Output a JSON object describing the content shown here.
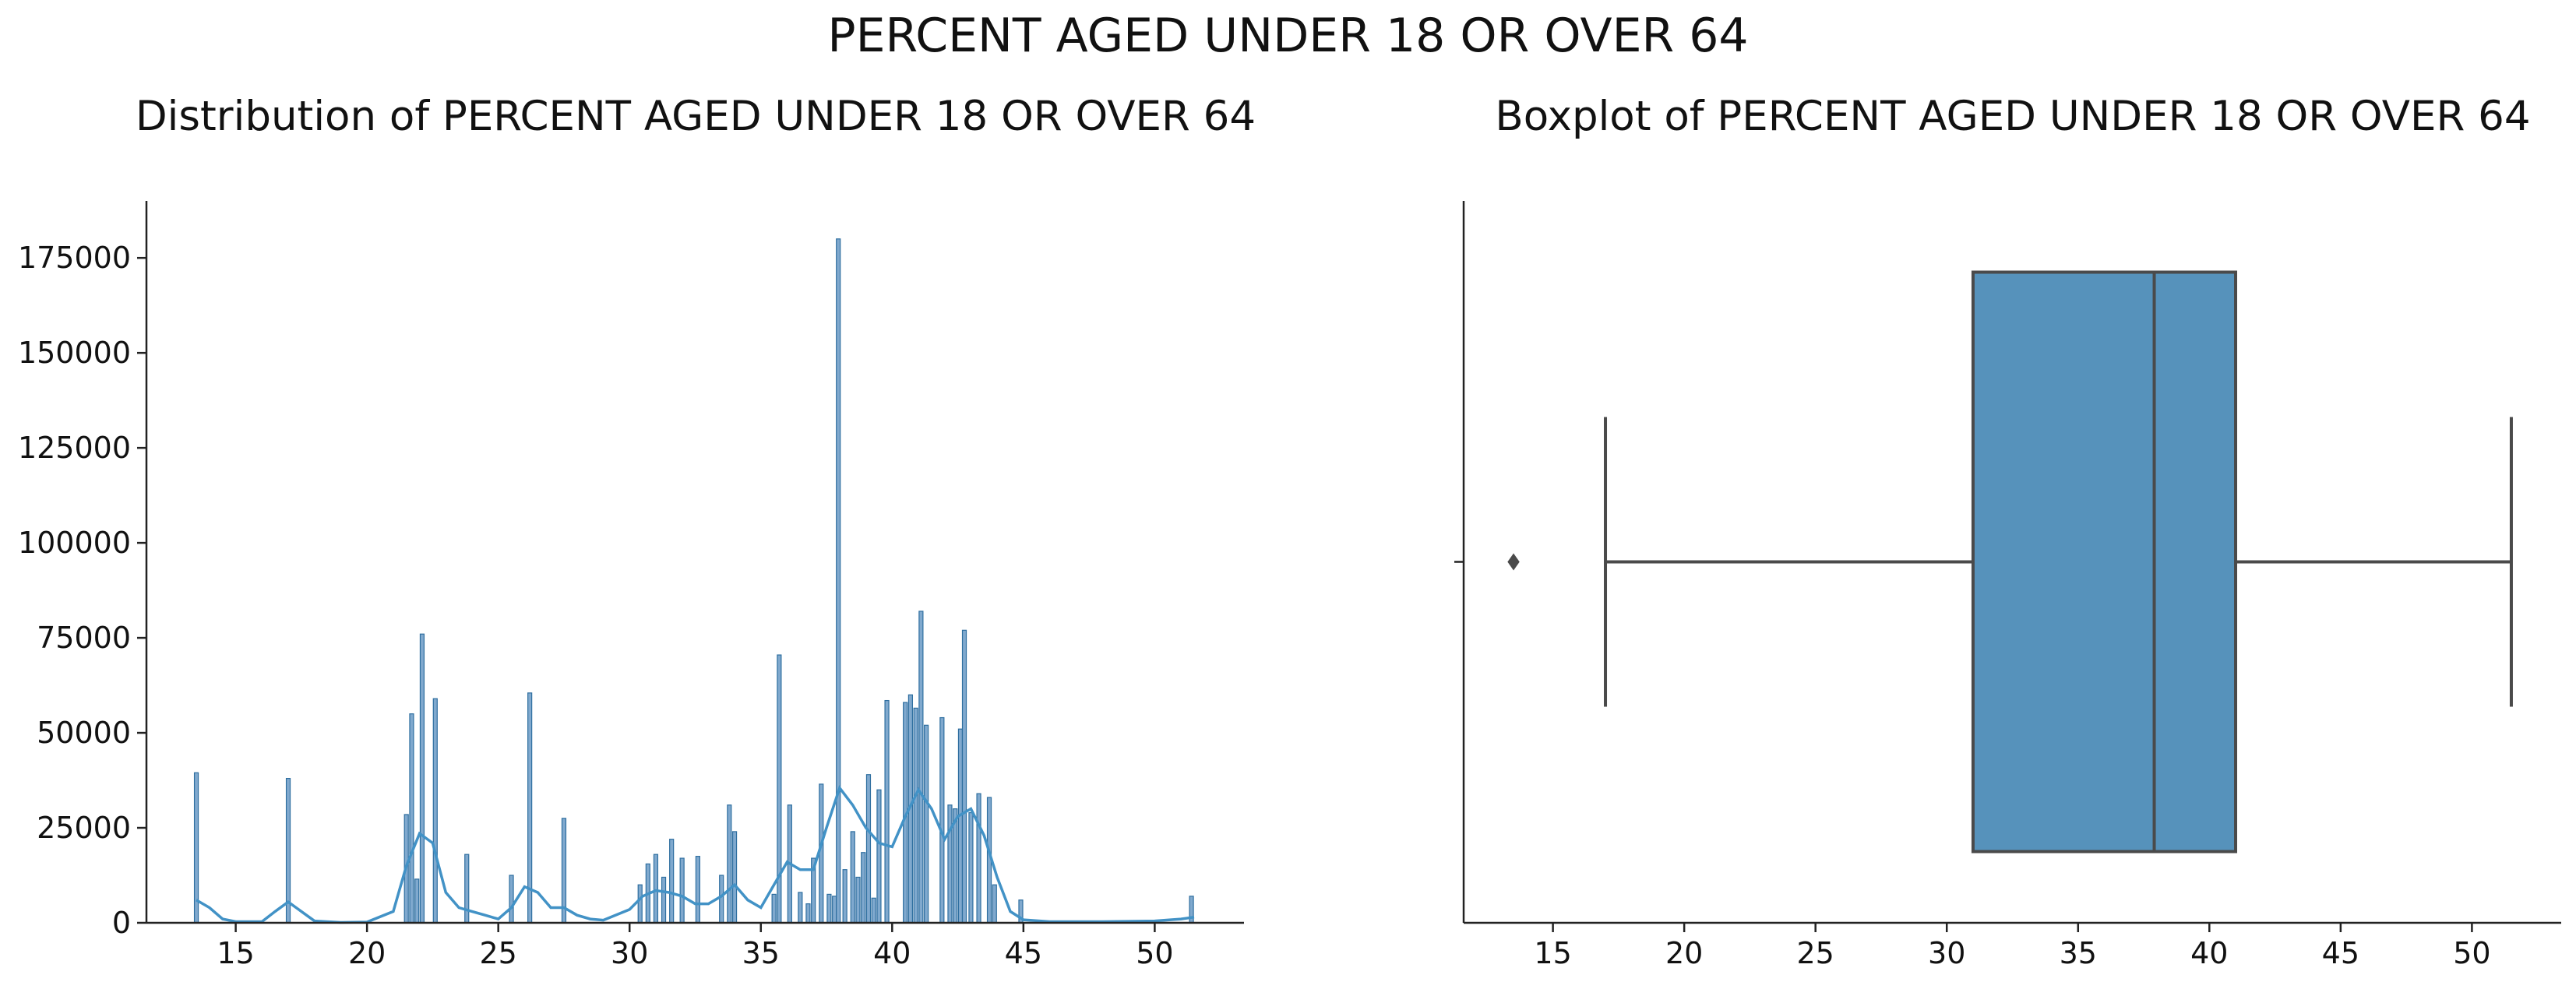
{
  "figure_title": "PERCENT AGED UNDER 18 OR OVER 64",
  "colors": {
    "hist_fill": "#80A9CE",
    "hist_edge": "#2F6FA0",
    "kde_line": "#4292C6",
    "box_fill": "#5692BB",
    "box_edge": "#4A4A4A",
    "axis": "#222222"
  },
  "chart_data": [
    {
      "type": "histogram",
      "title": "Distribution of PERCENT AGED UNDER 18 OR OVER 64",
      "xlabel": "",
      "ylabel": "",
      "xlim": [
        11.6,
        53.4
      ],
      "ylim": [
        0,
        190000
      ],
      "x_ticks": [
        15,
        20,
        25,
        30,
        35,
        40,
        45,
        50
      ],
      "y_ticks": [
        0,
        25000,
        50000,
        75000,
        100000,
        125000,
        150000,
        175000
      ],
      "grid": false,
      "bars": [
        {
          "x": 13.5,
          "y": 39500
        },
        {
          "x": 17.0,
          "y": 38000
        },
        {
          "x": 21.5,
          "y": 28500
        },
        {
          "x": 21.7,
          "y": 55000
        },
        {
          "x": 21.9,
          "y": 11500
        },
        {
          "x": 22.1,
          "y": 76000
        },
        {
          "x": 22.6,
          "y": 59000
        },
        {
          "x": 23.8,
          "y": 18000
        },
        {
          "x": 25.5,
          "y": 12500
        },
        {
          "x": 26.2,
          "y": 60500
        },
        {
          "x": 27.5,
          "y": 27500
        },
        {
          "x": 30.4,
          "y": 10000
        },
        {
          "x": 30.7,
          "y": 15500
        },
        {
          "x": 31.0,
          "y": 18000
        },
        {
          "x": 31.3,
          "y": 12000
        },
        {
          "x": 31.6,
          "y": 22000
        },
        {
          "x": 32.0,
          "y": 17000
        },
        {
          "x": 32.6,
          "y": 17500
        },
        {
          "x": 33.5,
          "y": 12500
        },
        {
          "x": 33.8,
          "y": 31000
        },
        {
          "x": 34.0,
          "y": 24000
        },
        {
          "x": 35.5,
          "y": 7500
        },
        {
          "x": 35.7,
          "y": 70500
        },
        {
          "x": 36.1,
          "y": 31000
        },
        {
          "x": 36.5,
          "y": 8000
        },
        {
          "x": 36.8,
          "y": 5000
        },
        {
          "x": 37.0,
          "y": 17000
        },
        {
          "x": 37.3,
          "y": 36500
        },
        {
          "x": 37.6,
          "y": 7500
        },
        {
          "x": 37.8,
          "y": 7000
        },
        {
          "x": 37.95,
          "y": 180000
        },
        {
          "x": 38.2,
          "y": 14000
        },
        {
          "x": 38.5,
          "y": 24000
        },
        {
          "x": 38.7,
          "y": 12000
        },
        {
          "x": 38.9,
          "y": 18500
        },
        {
          "x": 39.1,
          "y": 39000
        },
        {
          "x": 39.3,
          "y": 6500
        },
        {
          "x": 39.5,
          "y": 35000
        },
        {
          "x": 39.8,
          "y": 58500
        },
        {
          "x": 40.5,
          "y": 58000
        },
        {
          "x": 40.7,
          "y": 60000
        },
        {
          "x": 40.9,
          "y": 56500
        },
        {
          "x": 41.1,
          "y": 82000
        },
        {
          "x": 41.3,
          "y": 52000
        },
        {
          "x": 41.9,
          "y": 54000
        },
        {
          "x": 42.2,
          "y": 31000
        },
        {
          "x": 42.4,
          "y": 30000
        },
        {
          "x": 42.6,
          "y": 51000
        },
        {
          "x": 42.75,
          "y": 77000
        },
        {
          "x": 43.0,
          "y": 29000
        },
        {
          "x": 43.3,
          "y": 34000
        },
        {
          "x": 43.7,
          "y": 33000
        },
        {
          "x": 43.9,
          "y": 10000
        },
        {
          "x": 44.9,
          "y": 6000
        },
        {
          "x": 51.4,
          "y": 7000
        }
      ],
      "kde_curve": {
        "x": [
          13.5,
          14.0,
          14.5,
          15.0,
          16.0,
          16.5,
          17.0,
          17.5,
          18.0,
          19.0,
          20.0,
          21.0,
          21.5,
          22.0,
          22.5,
          23.0,
          23.5,
          24.0,
          24.5,
          25.0,
          25.5,
          26.0,
          26.5,
          27.0,
          27.5,
          28.0,
          28.5,
          29.0,
          30.0,
          30.5,
          31.0,
          31.5,
          32.0,
          32.5,
          33.0,
          33.5,
          34.0,
          34.5,
          35.0,
          35.5,
          36.0,
          36.5,
          37.0,
          37.5,
          38.0,
          38.5,
          39.0,
          39.5,
          40.0,
          40.5,
          41.0,
          41.5,
          42.0,
          42.5,
          43.0,
          43.5,
          44.0,
          44.5,
          45.0,
          46.0,
          48.0,
          50.0,
          51.0,
          51.5
        ],
        "y": [
          6000,
          4000,
          1000,
          300,
          300,
          3000,
          5500,
          3000,
          500,
          100,
          200,
          3000,
          15000,
          23500,
          21000,
          8000,
          4000,
          3000,
          2000,
          1000,
          4000,
          9500,
          8000,
          4000,
          4000,
          2000,
          1000,
          700,
          3500,
          7000,
          8500,
          8000,
          7000,
          5000,
          5000,
          7000,
          10000,
          6000,
          4000,
          10000,
          16000,
          14000,
          14000,
          25000,
          35500,
          31000,
          25000,
          21000,
          20000,
          28000,
          35000,
          30000,
          22000,
          28000,
          30000,
          23000,
          12000,
          3000,
          800,
          300,
          300,
          500,
          1000,
          1500
        ]
      }
    },
    {
      "type": "boxplot",
      "title": "Boxplot of PERCENT AGED UNDER 18 OR OVER 64",
      "xlabel": "",
      "xlim": [
        11.6,
        53.4
      ],
      "x_ticks": [
        15,
        20,
        25,
        30,
        35,
        40,
        45,
        50
      ],
      "grid": false,
      "whisker_low": 17.0,
      "q1": 31.0,
      "median": 37.9,
      "q3": 41.0,
      "whisker_high": 51.5,
      "outliers": [
        13.5
      ]
    }
  ]
}
